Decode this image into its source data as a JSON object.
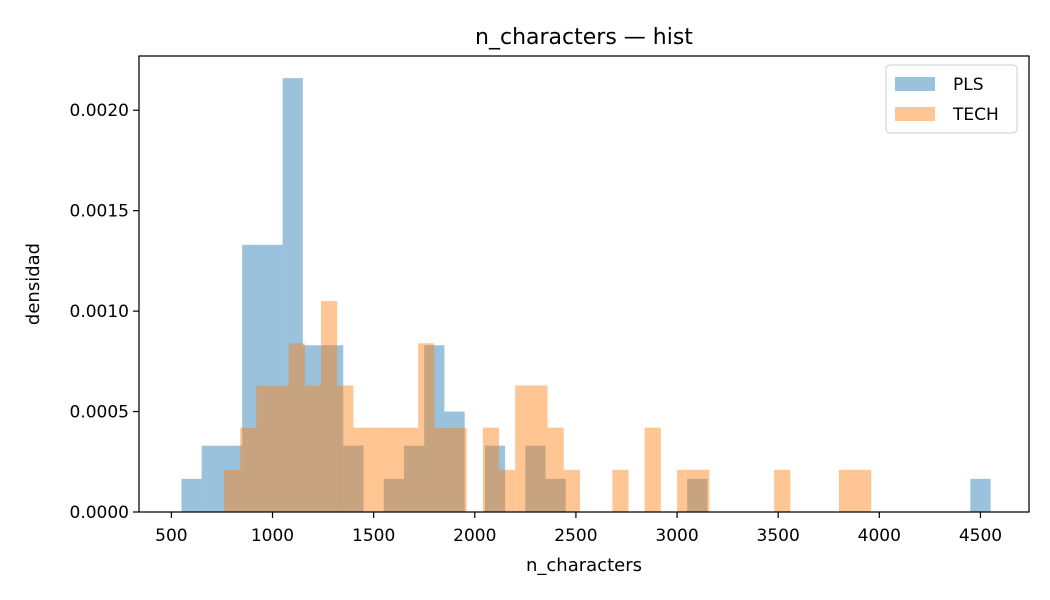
{
  "chart_data": {
    "type": "histogram",
    "title": "n_characters — hist",
    "xlabel": "n_characters",
    "ylabel": "densidad",
    "xlim": [
      340,
      4740
    ],
    "ylim": [
      0,
      0.00227
    ],
    "x_ticks": [
      500,
      1000,
      1500,
      2000,
      2500,
      3000,
      3500,
      4000,
      4500
    ],
    "x_tick_labels": [
      "500",
      "1000",
      "1500",
      "2000",
      "2500",
      "3000",
      "3500",
      "4000",
      "4500"
    ],
    "y_ticks": [
      0,
      0.0005,
      0.001,
      0.0015,
      0.002
    ],
    "y_tick_labels": [
      "0.0000",
      "0.0005",
      "0.0010",
      "0.0015",
      "0.0020"
    ],
    "legend": {
      "position": "top-right",
      "entries": [
        "PLS",
        "TECH"
      ]
    },
    "colors": {
      "PLS": "#1f77b4",
      "TECH": "#ff7f0e"
    },
    "alpha": 0.45,
    "series": [
      {
        "name": "PLS",
        "bins": [
          {
            "x0": 550,
            "x1": 650,
            "density": 0.000165
          },
          {
            "x0": 650,
            "x1": 850,
            "density": 0.00033
          },
          {
            "x0": 850,
            "x1": 1050,
            "density": 0.00133
          },
          {
            "x0": 1050,
            "x1": 1150,
            "density": 0.00216
          },
          {
            "x0": 1150,
            "x1": 1350,
            "density": 0.00083
          },
          {
            "x0": 1350,
            "x1": 1450,
            "density": 0.00033
          },
          {
            "x0": 1550,
            "x1": 1650,
            "density": 0.000165
          },
          {
            "x0": 1650,
            "x1": 1750,
            "density": 0.00033
          },
          {
            "x0": 1750,
            "x1": 1850,
            "density": 0.00083
          },
          {
            "x0": 1850,
            "x1": 1950,
            "density": 0.0005
          },
          {
            "x0": 2050,
            "x1": 2150,
            "density": 0.00033
          },
          {
            "x0": 2250,
            "x1": 2350,
            "density": 0.00033
          },
          {
            "x0": 2350,
            "x1": 2450,
            "density": 0.000165
          },
          {
            "x0": 3050,
            "x1": 3150,
            "density": 0.000165
          },
          {
            "x0": 4450,
            "x1": 4550,
            "density": 0.000165
          }
        ]
      },
      {
        "name": "TECH",
        "bins": [
          {
            "x0": 760,
            "x1": 840,
            "density": 0.00021
          },
          {
            "x0": 840,
            "x1": 920,
            "density": 0.00042
          },
          {
            "x0": 920,
            "x1": 1080,
            "density": 0.00063
          },
          {
            "x0": 1080,
            "x1": 1160,
            "density": 0.00084
          },
          {
            "x0": 1160,
            "x1": 1240,
            "density": 0.00063
          },
          {
            "x0": 1240,
            "x1": 1320,
            "density": 0.00105
          },
          {
            "x0": 1320,
            "x1": 1400,
            "density": 0.00063
          },
          {
            "x0": 1400,
            "x1": 1480,
            "density": 0.00042
          },
          {
            "x0": 1480,
            "x1": 1720,
            "density": 0.00042
          },
          {
            "x0": 1720,
            "x1": 1800,
            "density": 0.00084
          },
          {
            "x0": 1800,
            "x1": 1960,
            "density": 0.00042
          },
          {
            "x0": 2040,
            "x1": 2120,
            "density": 0.00042
          },
          {
            "x0": 2120,
            "x1": 2200,
            "density": 0.00021
          },
          {
            "x0": 2200,
            "x1": 2360,
            "density": 0.00063
          },
          {
            "x0": 2360,
            "x1": 2440,
            "density": 0.00042
          },
          {
            "x0": 2440,
            "x1": 2520,
            "density": 0.00021
          },
          {
            "x0": 2680,
            "x1": 2760,
            "density": 0.00021
          },
          {
            "x0": 2840,
            "x1": 2920,
            "density": 0.00042
          },
          {
            "x0": 3000,
            "x1": 3160,
            "density": 0.00021
          },
          {
            "x0": 3480,
            "x1": 3560,
            "density": 0.00021
          },
          {
            "x0": 3800,
            "x1": 3960,
            "density": 0.00021
          }
        ]
      }
    ]
  }
}
